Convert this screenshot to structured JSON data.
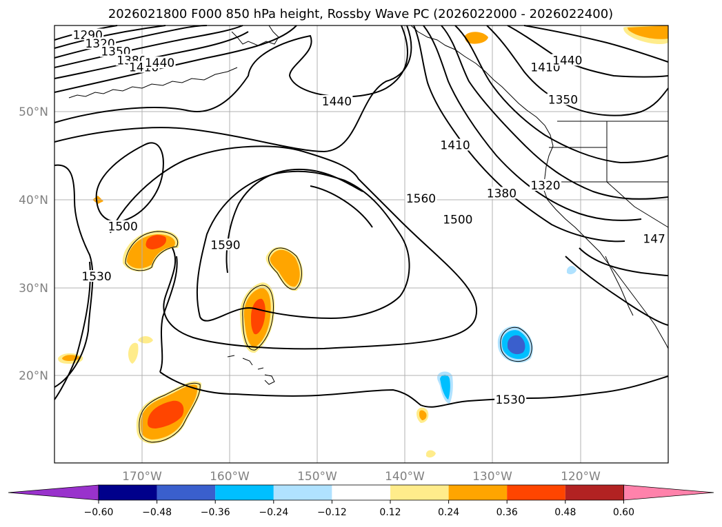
{
  "title": "2026021800 F000 850 hPa height, Rossby Wave PC (2026022000 - 2026022400)",
  "map": {
    "lon_range": [
      -180,
      -110
    ],
    "lat_range": [
      10,
      60
    ],
    "lon_ticks": [
      {
        "value": -170,
        "label": "170°W"
      },
      {
        "value": -160,
        "label": "160°W"
      },
      {
        "value": -150,
        "label": "150°W"
      },
      {
        "value": -140,
        "label": "140°W"
      },
      {
        "value": -130,
        "label": "130°W"
      },
      {
        "value": -120,
        "label": "120°W"
      }
    ],
    "lat_ticks": [
      {
        "value": 50,
        "label": "50°N"
      },
      {
        "value": 40,
        "label": "40°N"
      },
      {
        "value": 30,
        "label": "30°N"
      },
      {
        "value": 20,
        "label": "20°N"
      }
    ],
    "gridlines": true,
    "contour_labels": [
      {
        "text": "1290",
        "lon": -176.2,
        "lat": 58.7
      },
      {
        "text": "1320",
        "lon": -174.8,
        "lat": 57.7
      },
      {
        "text": "1350",
        "lon": -173.0,
        "lat": 56.8
      },
      {
        "text": "1380",
        "lon": -171.2,
        "lat": 55.8
      },
      {
        "text": "1410",
        "lon": -169.8,
        "lat": 55.0
      },
      {
        "text": "1440",
        "lon": -168.0,
        "lat": 55.5
      },
      {
        "text": "1440",
        "lon": -147.8,
        "lat": 51.1
      },
      {
        "text": "1410",
        "lon": -134.3,
        "lat": 46.1
      },
      {
        "text": "1380",
        "lon": -129.0,
        "lat": 40.6
      },
      {
        "text": "1560",
        "lon": -138.2,
        "lat": 40.0
      },
      {
        "text": "1500",
        "lon": -134.0,
        "lat": 37.6
      },
      {
        "text": "1590",
        "lon": -160.5,
        "lat": 34.7
      },
      {
        "text": "1500",
        "lon": -172.2,
        "lat": 36.8
      },
      {
        "text": "1530",
        "lon": -175.2,
        "lat": 31.1
      },
      {
        "text": "1320",
        "lon": -124.0,
        "lat": 41.5
      },
      {
        "text": "1350",
        "lon": -122.0,
        "lat": 51.3
      },
      {
        "text": "1410",
        "lon": -124.0,
        "lat": 55.0
      },
      {
        "text": "1440",
        "lon": -121.5,
        "lat": 55.8
      },
      {
        "text": "1530",
        "lon": -128.0,
        "lat": 17.0
      },
      {
        "text": "147",
        "lon": -111.6,
        "lat": 35.4
      }
    ]
  },
  "colorbar": {
    "colors": [
      "#9932cc",
      "#00008b",
      "#3a5fcd",
      "#00bfff",
      "#b0e2ff",
      "#ffffff",
      "#ffec8b",
      "#ffa500",
      "#ff4500",
      "#b22222",
      "#ff82ab"
    ],
    "tick_labels": [
      "−0.60",
      "−0.48",
      "−0.36",
      "−0.24",
      "−0.12",
      "0.12",
      "0.24",
      "0.36",
      "0.48",
      "0.60"
    ]
  }
}
